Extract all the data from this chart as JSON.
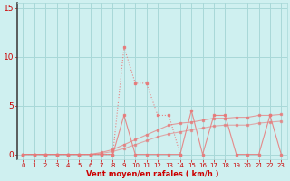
{
  "bg_color": "#cff0f0",
  "grid_color": "#a8d8d8",
  "line_color": "#e87878",
  "axis_label_color": "#cc0000",
  "tick_color": "#cc0000",
  "xlabel": "Vent moyen/en rafales ( km/h )",
  "xlim": [
    -0.5,
    23.5
  ],
  "ylim": [
    -0.5,
    15.5
  ],
  "yticks": [
    0,
    5,
    10,
    15
  ],
  "xticks": [
    0,
    1,
    2,
    3,
    4,
    5,
    6,
    7,
    8,
    9,
    10,
    11,
    12,
    13,
    14,
    15,
    16,
    17,
    18,
    19,
    20,
    21,
    22,
    23
  ],
  "line1_x": [
    0,
    1,
    2,
    3,
    4,
    5,
    6,
    7,
    8,
    9,
    10,
    11,
    12,
    13,
    14
  ],
  "line1_y": [
    0,
    0,
    0,
    0,
    0,
    0,
    0,
    0,
    0,
    11,
    7.3,
    7.3,
    4,
    4,
    0
  ],
  "line2_x": [
    0,
    1,
    2,
    3,
    4,
    5,
    6,
    7,
    8,
    9,
    10,
    11,
    12,
    13,
    14,
    15,
    16,
    17,
    18,
    19,
    20,
    21,
    22,
    23
  ],
  "line2_y": [
    0,
    0,
    0,
    0,
    0,
    0,
    0,
    0,
    0,
    4,
    0,
    0,
    0,
    0,
    0,
    4.5,
    0,
    4,
    4,
    0,
    0,
    0,
    4,
    0
  ],
  "line3_x": [
    0,
    1,
    2,
    3,
    4,
    5,
    6,
    7,
    8,
    9,
    10,
    11,
    12,
    13,
    14,
    15,
    16,
    17,
    18,
    19,
    20,
    21,
    22,
    23
  ],
  "line3_y": [
    0,
    0,
    0,
    0,
    0,
    0,
    0,
    0.2,
    0.5,
    1.0,
    1.5,
    2.0,
    2.5,
    3.0,
    3.2,
    3.3,
    3.5,
    3.7,
    3.7,
    3.8,
    3.8,
    4.0,
    4.0,
    4.1
  ],
  "line4_x": [
    0,
    1,
    2,
    3,
    4,
    5,
    6,
    7,
    8,
    9,
    10,
    11,
    12,
    13,
    14,
    15,
    16,
    17,
    18,
    19,
    20,
    21,
    22,
    23
  ],
  "line4_y": [
    0,
    0,
    0,
    0,
    0,
    0,
    0,
    0.1,
    0.3,
    0.6,
    1.0,
    1.4,
    1.8,
    2.1,
    2.3,
    2.5,
    2.7,
    2.9,
    3.0,
    3.0,
    3.0,
    3.2,
    3.3,
    3.4
  ]
}
